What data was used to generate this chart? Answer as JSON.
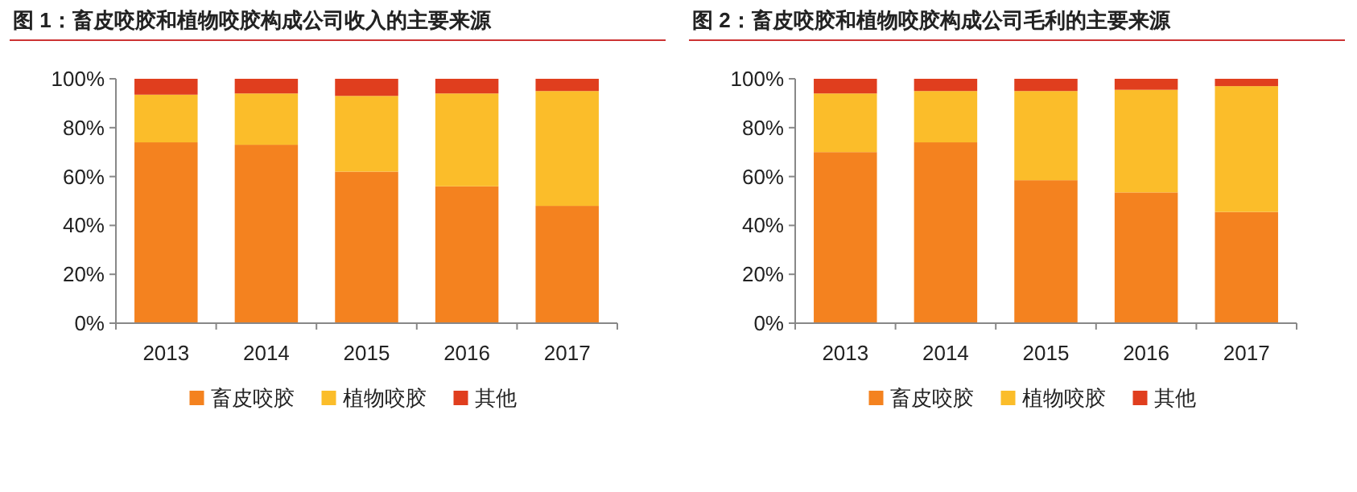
{
  "chart_data": [
    {
      "type": "bar",
      "title": "图 1：畜皮咬胶和植物咬胶构成公司收入的主要来源",
      "categories": [
        "2013",
        "2014",
        "2015",
        "2016",
        "2017"
      ],
      "stacked": true,
      "ylim": [
        0,
        100
      ],
      "yticks": [
        {
          "value": 0,
          "label": "0%"
        },
        {
          "value": 20,
          "label": "20%"
        },
        {
          "value": 40,
          "label": "40%"
        },
        {
          "value": 60,
          "label": "60%"
        },
        {
          "value": 80,
          "label": "80%"
        },
        {
          "value": 100,
          "label": "100%"
        }
      ],
      "grid": false,
      "legend": "bottom",
      "series": [
        {
          "name": "畜皮咬胶",
          "color": "#f4821f",
          "values": [
            74,
            73,
            62,
            56,
            48
          ]
        },
        {
          "name": "植物咬胶",
          "color": "#fbbd2a",
          "values": [
            19.5,
            21,
            31,
            38,
            47
          ]
        },
        {
          "name": "其他",
          "color": "#e03e1e",
          "values": [
            6.5,
            6,
            7,
            6,
            5
          ]
        }
      ]
    },
    {
      "type": "bar",
      "title": "图 2：畜皮咬胶和植物咬胶构成公司毛利的主要来源",
      "categories": [
        "2013",
        "2014",
        "2015",
        "2016",
        "2017"
      ],
      "stacked": true,
      "ylim": [
        0,
        100
      ],
      "yticks": [
        {
          "value": 0,
          "label": "0%"
        },
        {
          "value": 20,
          "label": "20%"
        },
        {
          "value": 40,
          "label": "40%"
        },
        {
          "value": 60,
          "label": "60%"
        },
        {
          "value": 80,
          "label": "80%"
        },
        {
          "value": 100,
          "label": "100%"
        }
      ],
      "grid": false,
      "legend": "bottom",
      "series": [
        {
          "name": "畜皮咬胶",
          "color": "#f4821f",
          "values": [
            70,
            74,
            58.5,
            53.5,
            45.5
          ]
        },
        {
          "name": "植物咬胶",
          "color": "#fbbd2a",
          "values": [
            24,
            21,
            36.5,
            42,
            51.5
          ]
        },
        {
          "name": "其他",
          "color": "#e03e1e",
          "values": [
            6,
            5,
            5,
            4.5,
            3
          ]
        }
      ]
    }
  ]
}
